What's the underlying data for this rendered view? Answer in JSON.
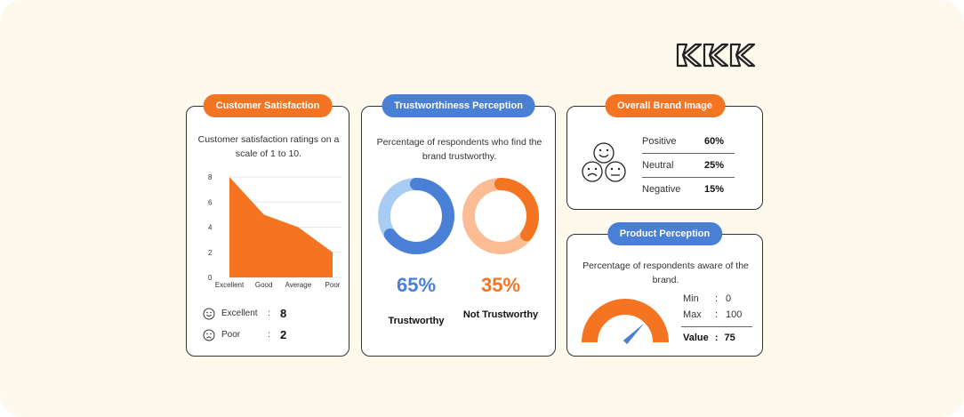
{
  "colors": {
    "orange": "#f47421",
    "blue": "#4a7fd6",
    "light_blue": "#a9ccf5",
    "light_orange": "#fcbc94",
    "background": "#fdf9ec"
  },
  "logo": {
    "icon": "brand-logo-icon"
  },
  "customer_satisfaction": {
    "title": "Customer Satisfaction",
    "description": "Customer satisfaction ratings on a scale of 1 to 10.",
    "excellent_label": "Excellent",
    "excellent_value": "8",
    "poor_label": "Poor",
    "poor_value": "2",
    "colon": ":"
  },
  "trustworthiness": {
    "title": "Trustworthiness Perception",
    "description": "Percentage of respondents who find the brand trustworthy.",
    "trustworthy_pct": "65%",
    "trustworthy_label": "Trustworthy",
    "not_trustworthy_pct": "35%",
    "not_trustworthy_label": "Not Trustworthy"
  },
  "brand_image": {
    "title": "Overall Brand Image",
    "rows": [
      {
        "label": "Positive",
        "value": "60%"
      },
      {
        "label": "Neutral",
        "value": "25%"
      },
      {
        "label": "Negative",
        "value": "15%"
      }
    ]
  },
  "product_perception": {
    "title": "Product Perception",
    "description": "Percentage of respondents aware of the brand.",
    "min_label": "Min",
    "min_value": "0",
    "max_label": "Max",
    "max_value": "100",
    "value_label": "Value",
    "value_value": "75",
    "colon": ":"
  },
  "chart_data": [
    {
      "type": "area",
      "categories": [
        "Excellent",
        "Good",
        "Average",
        "Poor"
      ],
      "values": [
        8,
        5,
        4,
        2
      ],
      "yticks": [
        0,
        2,
        4,
        6,
        8
      ],
      "ylim": [
        0,
        8
      ],
      "grid": true
    },
    {
      "type": "pie",
      "labels": [
        "Trustworthy",
        "Not Trustworthy"
      ],
      "values": [
        65,
        35
      ]
    },
    {
      "type": "table",
      "labels": [
        "Positive",
        "Neutral",
        "Negative"
      ],
      "values": [
        60,
        25,
        15
      ]
    },
    {
      "type": "gauge",
      "min": 0,
      "max": 100,
      "value": 75
    }
  ]
}
